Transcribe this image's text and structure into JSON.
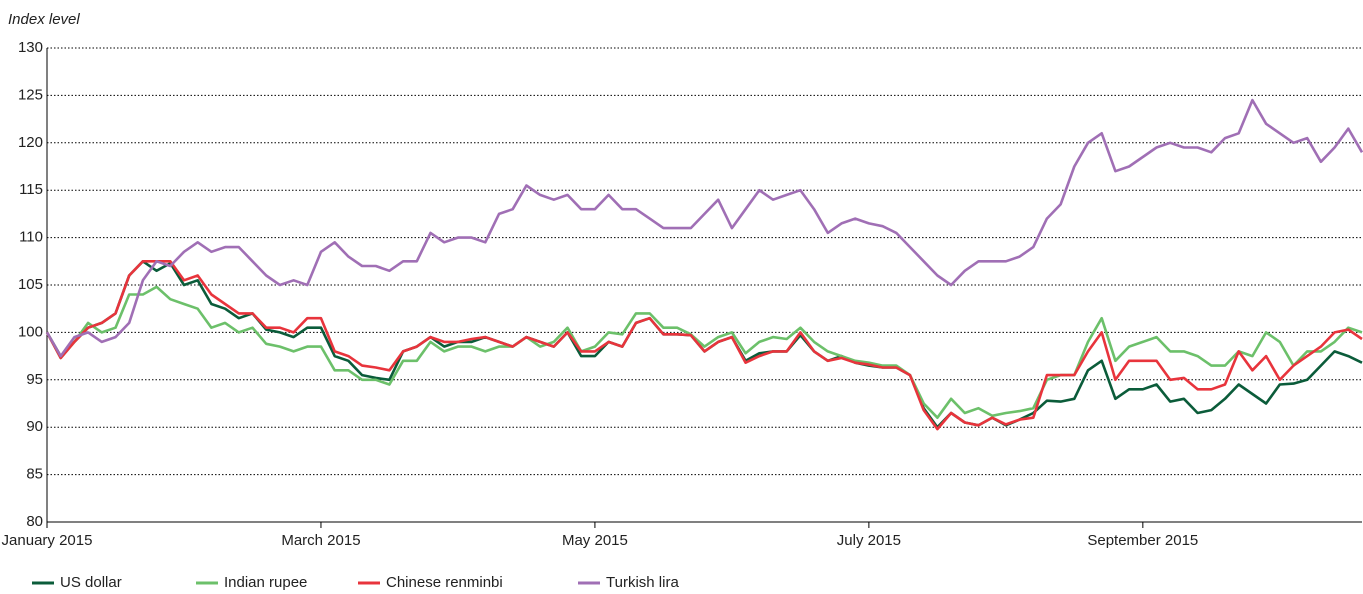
{
  "chart_data": {
    "type": "line",
    "ylabel": "Index level",
    "categories": [
      "January 2015",
      null,
      null,
      null,
      null,
      null,
      null,
      null,
      null,
      null,
      null,
      null,
      null,
      null,
      null,
      null,
      null,
      null,
      null,
      null,
      "March 2015",
      null,
      null,
      null,
      null,
      null,
      null,
      null,
      null,
      null,
      null,
      null,
      null,
      null,
      null,
      null,
      null,
      null,
      null,
      null,
      "May 2015",
      null,
      null,
      null,
      null,
      null,
      null,
      null,
      null,
      null,
      null,
      null,
      null,
      null,
      null,
      null,
      null,
      null,
      null,
      null,
      "July 2015",
      null,
      null,
      null,
      null,
      null,
      null,
      null,
      null,
      null,
      null,
      null,
      null,
      null,
      null,
      null,
      null,
      null,
      null,
      null,
      "September 2015",
      null,
      null,
      null,
      null,
      null,
      null,
      null,
      null,
      null,
      null,
      null,
      null,
      null,
      null,
      null,
      null
    ],
    "ylim": [
      80,
      130
    ],
    "yticks": [
      80,
      85,
      90,
      95,
      100,
      105,
      110,
      115,
      120,
      125,
      130
    ],
    "grid": true,
    "legend": "bottom",
    "series": [
      {
        "name": "US dollar",
        "color": "#0b5c3a",
        "values": [
          100,
          97.5,
          99,
          100.5,
          101,
          102,
          106,
          107.5,
          106.5,
          107.3,
          105,
          105.5,
          103,
          102.5,
          101.5,
          102,
          100.3,
          100,
          99.5,
          100.5,
          100.5,
          97.5,
          97,
          95.5,
          95.2,
          95,
          98,
          98.5,
          99.5,
          98.5,
          99,
          99,
          99.5,
          99,
          98.5,
          99.5,
          99,
          98.5,
          100,
          97.5,
          97.5,
          99,
          98.5,
          101,
          101.5,
          99.8,
          99.8,
          99.7,
          98,
          99,
          99.5,
          97,
          97.8,
          98,
          98,
          99.7,
          98,
          97,
          97.5,
          96.8,
          96.5,
          96.3,
          96.3,
          95.5,
          92,
          90,
          91.5,
          90.5,
          90.2,
          91,
          90.2,
          90.8,
          91.5,
          92.8,
          92.7,
          93,
          96,
          97,
          93,
          94,
          94,
          94.5,
          92.7,
          93,
          91.5,
          91.8,
          93,
          94.5,
          93.5,
          92.5,
          94.5,
          94.6,
          95,
          96.5,
          98,
          97.5,
          96.8
        ]
      },
      {
        "name": "Indian rupee",
        "color": "#6cc06a",
        "values": [
          100,
          97.3,
          99,
          101,
          100,
          100.5,
          104,
          104,
          104.8,
          103.5,
          103,
          102.5,
          100.5,
          101,
          100,
          100.5,
          98.8,
          98.5,
          98,
          98.5,
          98.5,
          96,
          96,
          95,
          95,
          94.5,
          97,
          97,
          99,
          98,
          98.5,
          98.5,
          98,
          98.5,
          98.5,
          99.5,
          98.5,
          99,
          100.5,
          98,
          98.5,
          100,
          99.8,
          102,
          102,
          100.5,
          100.5,
          99.8,
          98.5,
          99.5,
          100,
          97.8,
          99,
          99.5,
          99.3,
          100.5,
          99,
          98,
          97.5,
          97,
          96.8,
          96.5,
          96.5,
          95.5,
          92.5,
          91,
          93,
          91.5,
          92,
          91.2,
          91.5,
          91.7,
          92,
          95,
          95.5,
          95.5,
          99,
          101.5,
          97,
          98.5,
          99,
          99.5,
          98,
          98,
          97.5,
          96.5,
          96.5,
          98,
          97.5,
          100,
          99,
          96.5,
          98,
          98,
          99,
          100.5,
          100
        ]
      },
      {
        "name": "Chinese renminbi",
        "color": "#e8343c",
        "values": [
          100,
          97.3,
          99,
          100.5,
          101,
          102,
          106,
          107.5,
          107.5,
          107.5,
          105.5,
          106,
          104,
          103,
          102,
          102,
          100.5,
          100.5,
          100,
          101.5,
          101.5,
          98,
          97.5,
          96.5,
          96.3,
          96,
          98,
          98.5,
          99.5,
          99,
          99,
          99.3,
          99.5,
          99,
          98.5,
          99.5,
          99,
          98.5,
          100,
          98,
          98,
          99,
          98.5,
          101,
          101.5,
          99.8,
          99.8,
          99.7,
          98,
          99,
          99.5,
          96.8,
          97.5,
          98,
          98,
          100,
          98,
          97,
          97.3,
          96.8,
          96.6,
          96.3,
          96.3,
          95.5,
          91.8,
          89.8,
          91.5,
          90.5,
          90.2,
          91,
          90.3,
          90.8,
          91,
          95.5,
          95.5,
          95.5,
          98,
          100,
          95,
          97,
          97,
          97,
          95,
          95.2,
          94,
          94,
          94.5,
          98,
          96,
          97.5,
          95,
          96.5,
          97.5,
          98.5,
          100,
          100.3,
          99.3
        ]
      },
      {
        "name": "Turkish lira",
        "color": "#a06fb5",
        "values": [
          100,
          97.5,
          99.5,
          100,
          99,
          99.5,
          101,
          105.5,
          107.5,
          107,
          108.5,
          109.5,
          108.5,
          109,
          109,
          107.5,
          106,
          105,
          105.5,
          105,
          108.5,
          109.5,
          108,
          107,
          107,
          106.5,
          107.5,
          107.5,
          110.5,
          109.5,
          110,
          110,
          109.5,
          112.5,
          113,
          115.5,
          114.5,
          114,
          114.5,
          113,
          113,
          114.5,
          113,
          113,
          112,
          111,
          111,
          111,
          112.5,
          114,
          111,
          113,
          115,
          114,
          114.5,
          115,
          113,
          110.5,
          111.5,
          112,
          111.5,
          111.2,
          110.5,
          109,
          107.5,
          106,
          105,
          106.5,
          107.5,
          107.5,
          107.5,
          108,
          109,
          112,
          113.5,
          117.5,
          120,
          121,
          117,
          117.5,
          118.5,
          119.5,
          120,
          119.5,
          119.5,
          119,
          120.5,
          121,
          124.5,
          122,
          121,
          120,
          120.5,
          118,
          119.5,
          121.5,
          119
        ]
      }
    ]
  }
}
